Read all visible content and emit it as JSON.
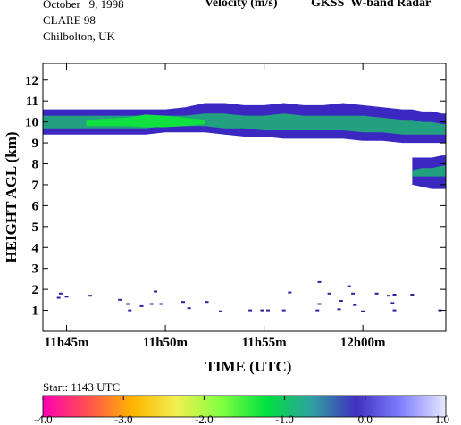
{
  "header": {
    "date": "October   9, 1998",
    "campaign": "CLARE 98",
    "site": "Chilbolton, UK",
    "variable": "Velocity (m/s)",
    "instrument": "GKSS  W-band Radar"
  },
  "start_text": "Start: 1143 UTC",
  "colorbar": {
    "ticks": [
      "-4.0",
      "-3.0",
      "-2.0",
      "-1.0",
      "0.0",
      "1.0"
    ],
    "range": [
      -4.0,
      1.0
    ],
    "stops": [
      "#ff00b4",
      "#ff5050",
      "#ffb400",
      "#f0f050",
      "#80ff40",
      "#00e040",
      "#30a0a0",
      "#4030c0",
      "#8080ff",
      "#e8e8ff"
    ]
  },
  "chart_data": {
    "type": "heatmap",
    "title": "Velocity (m/s)",
    "xlabel": "TIME (UTC)",
    "ylabel": "HEIGHT AGL (km)",
    "xticks": [
      "11h45m",
      "11h50m",
      "11h55m",
      "12h00m"
    ],
    "xtick_minutes": [
      45,
      50,
      55,
      60
    ],
    "xlim_minutes": [
      43.8,
      64.2
    ],
    "yticks": [
      1,
      2,
      3,
      4,
      5,
      6,
      7,
      8,
      9,
      10,
      11,
      12
    ],
    "ylim": [
      0,
      12.8
    ],
    "grid": false,
    "cloud_layer": {
      "x_minutes": [
        43.8,
        45.0,
        46.0,
        47.0,
        48.0,
        49.0,
        50.0,
        51.0,
        52.0,
        53.0,
        54.0,
        55.0,
        56.0,
        57.0,
        58.0,
        59.0,
        60.0,
        61.0,
        62.0,
        62.5,
        63.0,
        63.5,
        64.0,
        64.2
      ],
      "base_km": [
        9.4,
        9.4,
        9.4,
        9.4,
        9.4,
        9.4,
        9.5,
        9.5,
        9.5,
        9.4,
        9.3,
        9.3,
        9.2,
        9.2,
        9.2,
        9.2,
        9.1,
        9.1,
        9.0,
        9.0,
        9.0,
        9.0,
        9.0,
        9.0
      ],
      "top_km": [
        10.6,
        10.6,
        10.6,
        10.6,
        10.6,
        10.6,
        10.6,
        10.7,
        10.9,
        10.9,
        10.8,
        10.8,
        10.9,
        10.8,
        10.8,
        10.9,
        10.8,
        10.7,
        10.6,
        10.6,
        10.5,
        10.5,
        10.4,
        10.4
      ],
      "core_base_km": [
        9.7,
        9.7,
        9.7,
        9.7,
        9.7,
        9.7,
        9.8,
        9.8,
        9.8,
        9.7,
        9.7,
        9.6,
        9.6,
        9.6,
        9.6,
        9.6,
        9.5,
        9.5,
        9.4,
        9.4,
        9.4,
        9.4,
        9.4,
        9.4
      ],
      "core_top_km": [
        10.3,
        10.3,
        10.3,
        10.3,
        10.3,
        10.3,
        10.3,
        10.3,
        10.4,
        10.4,
        10.3,
        10.3,
        10.4,
        10.3,
        10.3,
        10.3,
        10.3,
        10.2,
        10.1,
        10.1,
        10.0,
        10.0,
        9.9,
        9.9
      ]
    },
    "fast_fall_region": {
      "x_minutes": [
        46.0,
        48.0,
        49.0,
        50.0,
        51.0,
        52.0
      ],
      "base_km": [
        9.8,
        9.8,
        9.75,
        9.75,
        9.8,
        9.9
      ],
      "top_km": [
        10.1,
        10.2,
        10.35,
        10.3,
        10.2,
        10.1
      ]
    },
    "lower_lobe": {
      "x_minutes": [
        62.5,
        63.0,
        63.5,
        64.0,
        64.2
      ],
      "base_km": [
        7.0,
        6.9,
        6.8,
        6.8,
        6.8
      ],
      "top_km": [
        8.3,
        8.3,
        8.3,
        8.4,
        8.4
      ],
      "core_base_km": [
        7.4,
        7.4,
        7.4,
        7.4,
        7.4
      ],
      "core_top_km": [
        7.7,
        7.8,
        7.8,
        7.9,
        7.9
      ]
    },
    "low_echoes": [
      {
        "x": 44.7,
        "y": 1.8
      },
      {
        "x": 44.6,
        "y": 1.6
      },
      {
        "x": 45.0,
        "y": 1.65
      },
      {
        "x": 46.2,
        "y": 1.7
      },
      {
        "x": 47.7,
        "y": 1.5
      },
      {
        "x": 48.1,
        "y": 1.3
      },
      {
        "x": 48.2,
        "y": 1.0
      },
      {
        "x": 48.8,
        "y": 1.2
      },
      {
        "x": 49.3,
        "y": 1.3
      },
      {
        "x": 49.5,
        "y": 1.9
      },
      {
        "x": 49.8,
        "y": 1.3
      },
      {
        "x": 50.9,
        "y": 1.4
      },
      {
        "x": 51.2,
        "y": 1.1
      },
      {
        "x": 52.1,
        "y": 1.4
      },
      {
        "x": 52.8,
        "y": 0.95
      },
      {
        "x": 54.3,
        "y": 1.0
      },
      {
        "x": 54.9,
        "y": 1.0
      },
      {
        "x": 55.2,
        "y": 1.0
      },
      {
        "x": 56.0,
        "y": 1.0
      },
      {
        "x": 56.3,
        "y": 1.85
      },
      {
        "x": 57.8,
        "y": 2.35
      },
      {
        "x": 57.8,
        "y": 1.3
      },
      {
        "x": 57.7,
        "y": 1.0
      },
      {
        "x": 58.3,
        "y": 1.8
      },
      {
        "x": 58.8,
        "y": 1.05
      },
      {
        "x": 58.9,
        "y": 1.45
      },
      {
        "x": 59.3,
        "y": 2.15
      },
      {
        "x": 59.5,
        "y": 1.8
      },
      {
        "x": 59.6,
        "y": 1.25
      },
      {
        "x": 60.0,
        "y": 0.95
      },
      {
        "x": 60.7,
        "y": 1.8
      },
      {
        "x": 61.3,
        "y": 1.7
      },
      {
        "x": 61.6,
        "y": 1.75
      },
      {
        "x": 61.5,
        "y": 1.35
      },
      {
        "x": 61.6,
        "y": 1.0
      },
      {
        "x": 62.5,
        "y": 1.75
      },
      {
        "x": 63.9,
        "y": 1.0
      }
    ]
  }
}
